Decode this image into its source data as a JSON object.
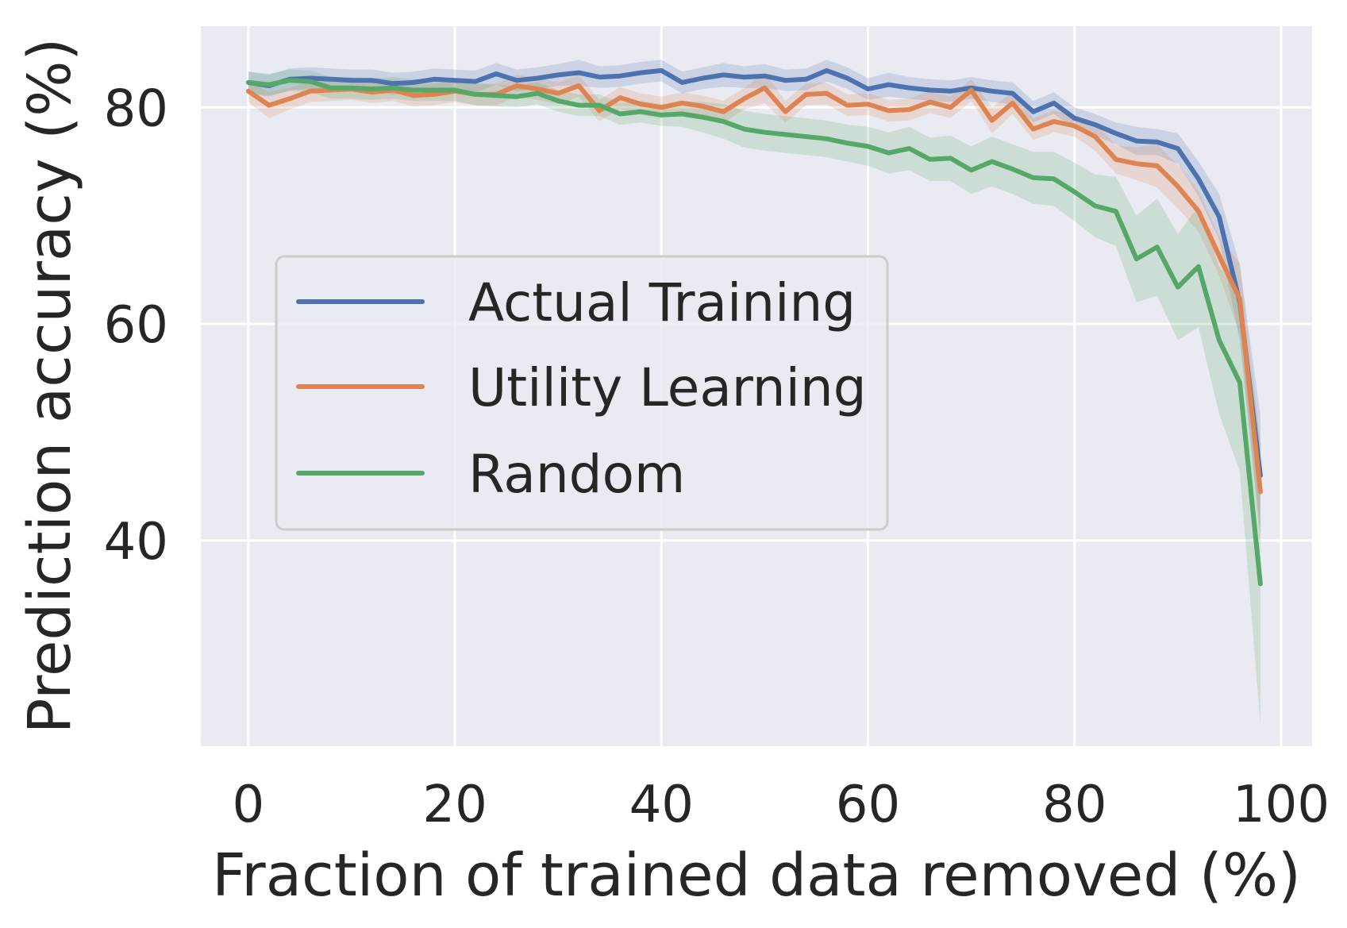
{
  "chart_data": {
    "type": "line",
    "title": "",
    "xlabel": "Fraction of trained data removed (%)",
    "ylabel": "Prediction accuracy (%)",
    "xlim": [
      -4.6,
      103
    ],
    "ylim": [
      21,
      87.5
    ],
    "xticks": [
      0,
      20,
      40,
      60,
      80,
      100
    ],
    "yticks": [
      40,
      60,
      80
    ],
    "grid": true,
    "legend_position": "center-left",
    "x": [
      0,
      2,
      4,
      6,
      8,
      10,
      12,
      14,
      16,
      18,
      20,
      22,
      24,
      26,
      28,
      30,
      32,
      34,
      36,
      38,
      40,
      42,
      44,
      46,
      48,
      50,
      52,
      54,
      56,
      58,
      60,
      62,
      64,
      66,
      68,
      70,
      72,
      74,
      76,
      78,
      80,
      82,
      84,
      86,
      88,
      90,
      92,
      94,
      96,
      98
    ],
    "series": [
      {
        "name": "Actual Training",
        "color": "#4C72B0",
        "values": [
          82.3,
          82.0,
          82.6,
          82.7,
          82.6,
          82.5,
          82.5,
          82.2,
          82.3,
          82.6,
          82.5,
          82.4,
          83.1,
          82.5,
          82.7,
          83.0,
          83.2,
          82.8,
          82.9,
          83.2,
          83.4,
          82.3,
          82.7,
          83.0,
          82.8,
          82.9,
          82.5,
          82.6,
          83.4,
          82.7,
          81.7,
          82.1,
          81.8,
          81.6,
          81.5,
          81.8,
          81.5,
          81.3,
          79.6,
          80.4,
          79.0,
          78.4,
          77.6,
          76.9,
          76.8,
          76.2,
          73.4,
          69.9,
          62.0,
          46.0
        ],
        "lower": [
          81.3,
          81.0,
          81.6,
          81.7,
          81.6,
          81.5,
          81.5,
          81.2,
          81.3,
          81.6,
          81.5,
          81.4,
          82.1,
          81.5,
          81.7,
          82.0,
          82.0,
          81.8,
          81.9,
          82.2,
          82.4,
          81.3,
          81.7,
          81.9,
          81.8,
          81.8,
          81.5,
          81.6,
          82.4,
          81.7,
          80.7,
          81.0,
          80.8,
          80.6,
          80.5,
          80.8,
          80.5,
          80.3,
          78.6,
          79.4,
          78.0,
          77.4,
          76.6,
          75.6,
          75.6,
          74.8,
          71.8,
          67.8,
          58.5,
          40.5
        ],
        "upper": [
          83.3,
          83.0,
          83.6,
          83.7,
          83.6,
          83.5,
          83.5,
          83.2,
          83.3,
          83.6,
          83.5,
          83.4,
          84.1,
          83.5,
          83.7,
          84.0,
          84.4,
          83.8,
          83.9,
          84.2,
          84.4,
          83.3,
          83.7,
          84.1,
          83.8,
          84.0,
          83.5,
          83.6,
          84.4,
          83.7,
          82.7,
          83.2,
          82.8,
          82.6,
          82.5,
          82.8,
          82.5,
          82.3,
          80.6,
          81.4,
          80.0,
          79.4,
          78.6,
          78.2,
          78.0,
          77.6,
          75.0,
          72.0,
          65.5,
          51.5
        ]
      },
      {
        "name": "Utility Learning",
        "color": "#DD8452",
        "values": [
          81.5,
          80.2,
          80.8,
          81.5,
          81.6,
          81.7,
          81.4,
          81.6,
          81.1,
          81.2,
          81.5,
          81.2,
          81.2,
          82.0,
          81.7,
          81.3,
          82.0,
          79.7,
          80.9,
          80.3,
          80.0,
          80.4,
          80.1,
          79.6,
          80.8,
          81.8,
          79.6,
          81.2,
          81.3,
          80.2,
          80.3,
          79.7,
          79.8,
          80.5,
          80.0,
          81.6,
          78.8,
          80.4,
          78.0,
          78.7,
          78.3,
          77.3,
          75.2,
          74.8,
          74.6,
          72.7,
          70.4,
          66.3,
          62.3,
          44.5
        ],
        "lower": [
          80.5,
          79.0,
          79.8,
          80.5,
          80.6,
          80.7,
          80.4,
          80.6,
          80.1,
          80.2,
          80.5,
          80.2,
          80.2,
          81.0,
          80.7,
          80.3,
          81.0,
          78.7,
          79.9,
          79.3,
          79.0,
          79.4,
          79.1,
          78.6,
          79.8,
          80.4,
          78.6,
          80.2,
          80.3,
          79.2,
          79.3,
          78.7,
          78.8,
          79.5,
          79.0,
          80.6,
          77.6,
          79.4,
          77.0,
          77.7,
          77.3,
          76.0,
          73.9,
          73.3,
          72.6,
          70.7,
          68.5,
          64.5,
          59.0,
          40.0
        ],
        "upper": [
          82.5,
          81.4,
          81.8,
          82.5,
          82.6,
          82.7,
          82.4,
          82.6,
          82.1,
          82.2,
          82.5,
          82.2,
          82.2,
          83.0,
          82.7,
          82.3,
          83.0,
          80.7,
          81.9,
          81.3,
          81.0,
          81.4,
          81.1,
          80.6,
          81.8,
          83.2,
          80.6,
          82.2,
          82.3,
          81.2,
          81.3,
          80.7,
          80.8,
          81.5,
          81.0,
          82.6,
          80.0,
          81.4,
          79.0,
          79.7,
          79.3,
          78.6,
          76.5,
          76.3,
          76.6,
          74.7,
          72.3,
          68.1,
          65.6,
          49.0
        ]
      },
      {
        "name": "Random",
        "color": "#55A868",
        "values": [
          82.3,
          82.1,
          82.5,
          82.4,
          81.8,
          81.8,
          81.7,
          81.8,
          81.6,
          81.6,
          81.6,
          81.2,
          81.1,
          81.0,
          81.3,
          80.6,
          80.2,
          80.2,
          79.4,
          79.6,
          79.3,
          79.4,
          79.1,
          78.7,
          78.0,
          77.7,
          77.5,
          77.3,
          77.1,
          76.7,
          76.4,
          75.8,
          76.2,
          75.2,
          75.3,
          74.2,
          75.0,
          74.3,
          73.5,
          73.4,
          72.2,
          70.9,
          70.4,
          66.0,
          67.1,
          63.4,
          65.3,
          58.5,
          54.6,
          36.0
        ],
        "lower": [
          81.3,
          81.1,
          81.5,
          81.4,
          80.8,
          80.8,
          80.7,
          80.8,
          80.6,
          80.6,
          80.6,
          80.2,
          80.1,
          80.0,
          80.3,
          79.6,
          79.2,
          79.2,
          78.4,
          78.6,
          78.3,
          78.2,
          77.7,
          77.1,
          76.3,
          76.0,
          75.8,
          75.6,
          75.4,
          75.0,
          74.6,
          73.9,
          74.2,
          73.2,
          73.2,
          72.0,
          72.7,
          72.0,
          71.1,
          70.9,
          69.5,
          68.0,
          67.2,
          62.0,
          62.6,
          58.5,
          59.7,
          51.7,
          46.4,
          23.0
        ],
        "upper": [
          83.3,
          83.1,
          83.5,
          83.4,
          82.8,
          82.8,
          82.7,
          82.8,
          82.6,
          82.6,
          82.6,
          82.2,
          82.1,
          82.0,
          82.3,
          81.6,
          81.2,
          81.2,
          80.4,
          80.6,
          80.3,
          80.6,
          80.5,
          80.3,
          79.7,
          79.4,
          79.2,
          79.0,
          78.8,
          78.4,
          78.2,
          77.7,
          78.2,
          77.2,
          77.4,
          76.4,
          77.3,
          76.6,
          75.9,
          75.9,
          74.9,
          73.8,
          73.6,
          70.0,
          71.6,
          68.3,
          70.9,
          65.3,
          62.8,
          49.0
        ]
      }
    ]
  }
}
